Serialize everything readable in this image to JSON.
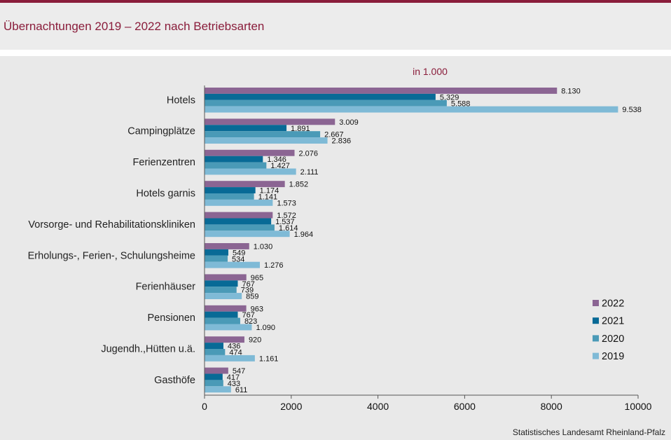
{
  "header": {
    "title": "Übernachtungen 2019 – 2022 nach Betriebsarten"
  },
  "footer": {
    "source": "Statistisches Landesamt Rheinland-Pfalz"
  },
  "chart_data": {
    "type": "bar",
    "orientation": "horizontal",
    "title": "Übernachtungen 2019 – 2022 nach Betriebsarten",
    "unit_label": "in 1.000",
    "categories": [
      "Hotels",
      "Campingplätze",
      "Ferienzentren",
      "Hotels garnis",
      "Vorsorge- und Rehabilitationskliniken",
      "Erholungs-, Ferien-, Schulungsheime",
      "Ferienhäuser",
      "Pensionen",
      "Jugendh.,Hütten u.ä.",
      "Gasthöfe"
    ],
    "series": [
      {
        "name": "2022",
        "color": "#8b6593",
        "values": [
          8130,
          3009,
          2076,
          1852,
          1572,
          1030,
          965,
          963,
          920,
          547
        ],
        "labels": [
          "8.130",
          "3.009",
          "2.076",
          "1.852",
          "1.572",
          "1.030",
          "965",
          "963",
          "920",
          "547"
        ]
      },
      {
        "name": "2021",
        "color": "#086a96",
        "values": [
          5329,
          1891,
          1346,
          1174,
          1537,
          549,
          767,
          767,
          436,
          417
        ],
        "labels": [
          "5.329",
          "1.891",
          "1.346",
          "1.174",
          "1.537",
          "549",
          "767",
          "767",
          "436",
          "417"
        ]
      },
      {
        "name": "2020",
        "color": "#4a9ab7",
        "values": [
          5588,
          2667,
          1427,
          1141,
          1614,
          534,
          739,
          823,
          474,
          433
        ],
        "labels": [
          "5.588",
          "2.667",
          "1.427",
          "1.141",
          "1.614",
          "534",
          "739",
          "823",
          "474",
          "433"
        ]
      },
      {
        "name": "2019",
        "color": "#7fbad6",
        "values": [
          9538,
          2836,
          2111,
          1573,
          1964,
          1276,
          859,
          1090,
          1161,
          611
        ],
        "labels": [
          "9.538",
          "2.836",
          "2.111",
          "1.573",
          "1.964",
          "1.276",
          "859",
          "1.090",
          "1.161",
          "611"
        ]
      }
    ],
    "xlim": [
      0,
      10000
    ],
    "xticks": [
      0,
      2000,
      4000,
      6000,
      8000,
      10000
    ],
    "xtick_labels": [
      "0",
      "2000",
      "4000",
      "6000",
      "8000",
      "10000"
    ],
    "grid": false,
    "legend_position": "bottom-right",
    "legend_order": [
      "2022",
      "2021",
      "2020",
      "2019"
    ]
  }
}
